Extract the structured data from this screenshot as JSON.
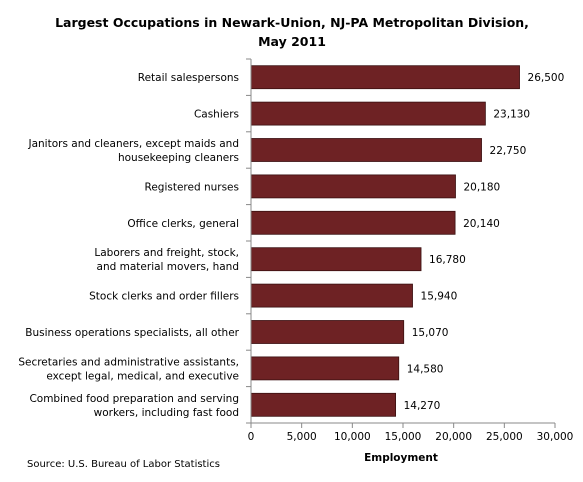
{
  "chart_data": {
    "type": "bar",
    "orientation": "horizontal",
    "title": "Largest Occupations in Newark-Union, NJ-PA Metropolitan Division, May 2011",
    "title_lines": [
      "Largest Occupations in Newark-Union, NJ-PA Metropolitan Division,",
      "May 2011"
    ],
    "categories": [
      [
        "Retail salespersons"
      ],
      [
        "Cashiers"
      ],
      [
        "Janitors and cleaners, except maids  and",
        "housekeeping cleaners"
      ],
      [
        "Registered nurses"
      ],
      [
        "Office clerks, general"
      ],
      [
        "Laborers and freight, stock,",
        "and material  movers, hand"
      ],
      [
        "Stock clerks and order fillers"
      ],
      [
        "Business operations specialists, all other"
      ],
      [
        "Secretaries and administrative  assistants,",
        "except legal, medical, and executive"
      ],
      [
        "Combined food preparation and serving",
        "workers, including fast food"
      ]
    ],
    "values": [
      26500,
      23130,
      22750,
      20180,
      20140,
      16780,
      15940,
      15070,
      14580,
      14270
    ],
    "value_labels": [
      "26,500",
      "23,130",
      "22,750",
      "20,180",
      "20,140",
      "16,780",
      "15,940",
      "15,070",
      "14,580",
      "14,270"
    ],
    "xlabel": "Employment",
    "ylabel": "",
    "xlim": [
      0,
      30000
    ],
    "xticks": [
      0,
      5000,
      10000,
      15000,
      20000,
      25000,
      30000
    ],
    "xtick_labels": [
      "0",
      "5,000",
      "10,000",
      "15,000",
      "20,000",
      "25,000",
      "30,000"
    ],
    "grid": false,
    "bar_color": "#6e2224",
    "bar_edge_color": "#3a1011"
  },
  "source": "Source:  U.S. Bureau of Labor Statistics"
}
